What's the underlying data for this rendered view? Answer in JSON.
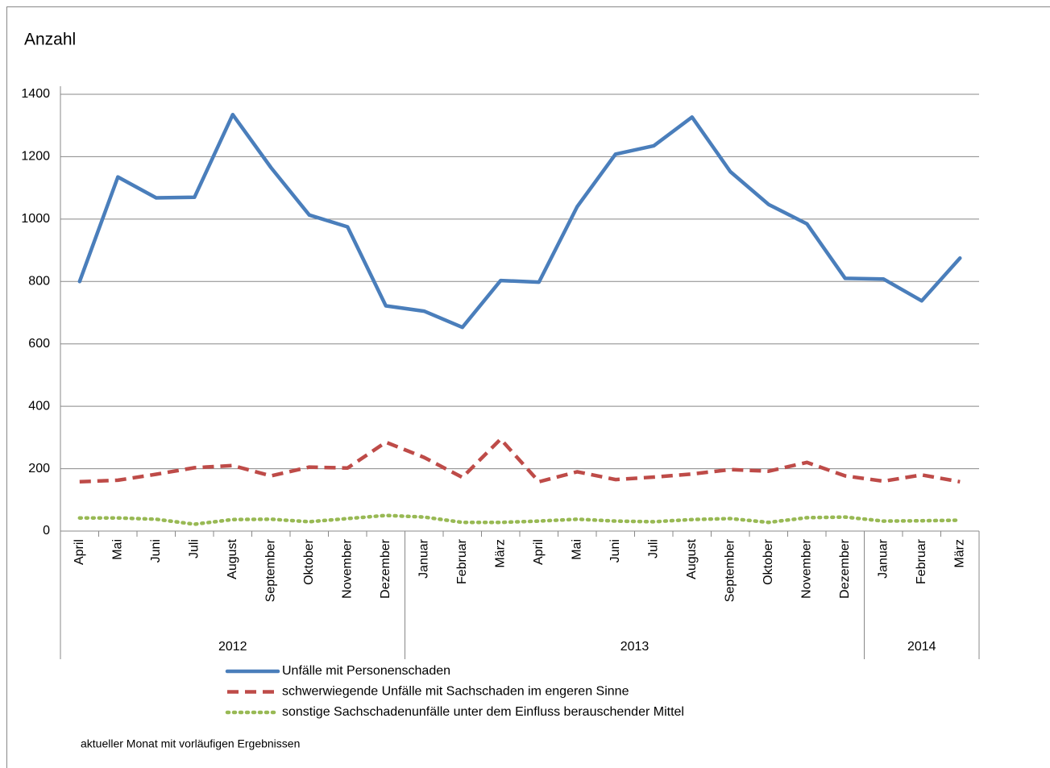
{
  "chart_data": {
    "type": "line",
    "y_label": "Anzahl",
    "groups": [
      {
        "name": "2012",
        "categories": [
          "April",
          "Mai",
          "Juni",
          "Juli",
          "August",
          "September",
          "Oktober",
          "November",
          "Dezember"
        ]
      },
      {
        "name": "2013",
        "categories": [
          "Januar",
          "Februar",
          "März",
          "April",
          "Mai",
          "Juni",
          "Juli",
          "August",
          "September",
          "Oktober",
          "November",
          "Dezember"
        ]
      },
      {
        "name": "2014",
        "categories": [
          "Januar",
          "Februar",
          "März"
        ]
      }
    ],
    "series": [
      {
        "name": "Unfälle mit Personenschaden",
        "color": "#4a7ebb",
        "style": "solid",
        "values": [
          800,
          1135,
          1068,
          1070,
          1335,
          1165,
          1013,
          975,
          722,
          705,
          653,
          803,
          798,
          1040,
          1208,
          1235,
          1327,
          1152,
          1047,
          985,
          810,
          808,
          738,
          875
        ]
      },
      {
        "name": "schwerwiegende Unfälle mit Sachschaden im engeren Sinne",
        "color": "#be4b48",
        "style": "dashed",
        "values": [
          158,
          163,
          182,
          203,
          210,
          177,
          205,
          202,
          285,
          236,
          172,
          295,
          158,
          190,
          165,
          173,
          183,
          197,
          192,
          220,
          177,
          160,
          180,
          158
        ]
      },
      {
        "name": "sonstige Sachschadenunfälle unter dem Einfluss berauschender Mittel",
        "color": "#98b954",
        "style": "dotted",
        "values": [
          42,
          42,
          38,
          22,
          37,
          38,
          30,
          40,
          50,
          45,
          28,
          28,
          32,
          38,
          32,
          30,
          37,
          40,
          28,
          43,
          45,
          32,
          33,
          35
        ]
      }
    ],
    "ylim": [
      0,
      1400
    ],
    "yticks": [
      0,
      200,
      400,
      600,
      800,
      1000,
      1200,
      1400
    ],
    "grid": true,
    "note": "aktueller Monat mit vorläufigen Ergebnissen"
  }
}
